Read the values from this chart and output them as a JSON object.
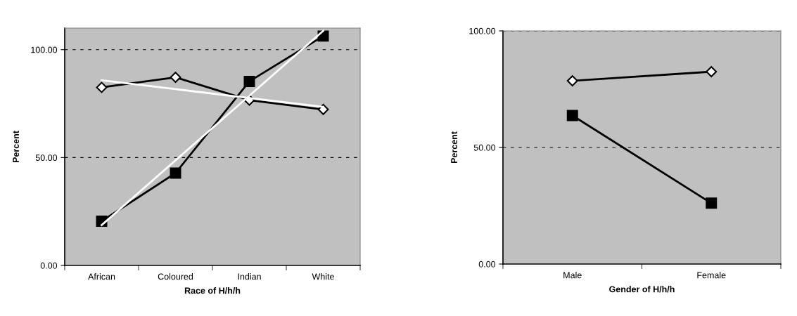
{
  "chart_data": [
    {
      "type": "line",
      "xlabel": "Race of H/h/h",
      "ylabel": "Percent",
      "categories": [
        "African",
        "Coloured",
        "Indian",
        "White"
      ],
      "ylim": [
        0,
        110
      ],
      "yticks": [
        {
          "value": 0,
          "label": "0.00"
        },
        {
          "value": 50,
          "label": "50.00"
        },
        {
          "value": 100,
          "label": "100.00"
        }
      ],
      "grid": "y",
      "series": [
        {
          "color": "#000000",
          "marker": "diamond",
          "values": [
            82.5,
            87.2,
            76.6,
            72.3
          ]
        },
        {
          "color": "#000000",
          "marker": "square",
          "values": [
            20.5,
            42.8,
            85.3,
            106.3
          ]
        },
        {
          "color": "#ffffff",
          "marker": "none",
          "values": [
            85.8,
            81.7,
            77.6,
            73.5
          ]
        },
        {
          "color": "#ffffff",
          "marker": "none",
          "values": [
            18.7,
            48.7,
            78.7,
            108.7
          ]
        }
      ]
    },
    {
      "type": "line",
      "xlabel": "Gender of H/h/h",
      "ylabel": "Percent",
      "categories": [
        "Male",
        "Female"
      ],
      "ylim": [
        0,
        100
      ],
      "yticks": [
        {
          "value": 0,
          "label": "0.00"
        },
        {
          "value": 50,
          "label": "50.00"
        },
        {
          "value": 100,
          "label": "100.00"
        }
      ],
      "grid": "y",
      "series": [
        {
          "color": "#000000",
          "marker": "diamond",
          "values": [
            78.6,
            82.5
          ]
        },
        {
          "color": "#000000",
          "marker": "square",
          "values": [
            63.7,
            26.1
          ]
        }
      ]
    }
  ]
}
